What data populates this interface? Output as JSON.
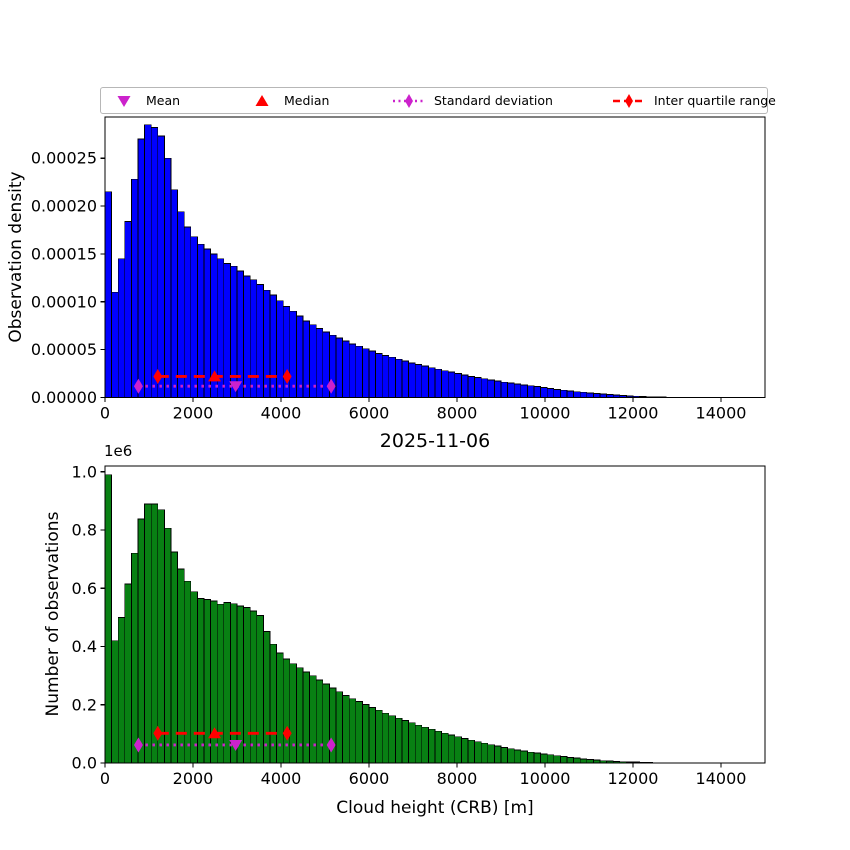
{
  "figure": {
    "title": "2025-11-06",
    "xlabel": "Cloud height (CRB) [m]",
    "background": "#ffffff"
  },
  "legend": {
    "items": [
      {
        "label": "Mean",
        "marker": "triangle-down",
        "color": "#CC22CC"
      },
      {
        "label": "Median",
        "marker": "triangle-up",
        "color": "#FF0000"
      },
      {
        "label": "Standard deviation",
        "marker": "dotted-line-diamond",
        "color": "#CC22CC"
      },
      {
        "label": "Inter quartile range",
        "marker": "dashed-line-diamond",
        "color": "#FF0000"
      }
    ]
  },
  "chart_data": [
    {
      "type": "bar",
      "name": "observation-density-histogram",
      "ylabel": "Observation density",
      "bar_color": "#0000FF",
      "bar_edge_color": "#000000",
      "x_start": 0,
      "bin_width_m": 150,
      "xlim": [
        0,
        15000
      ],
      "ylim": [
        0,
        0.000293
      ],
      "value_unit": 1e-06,
      "ymax_units": 293,
      "xticks": [
        0,
        2000,
        4000,
        6000,
        8000,
        10000,
        12000,
        14000
      ],
      "yticks": [
        {
          "v": 0,
          "label": "0.00000"
        },
        {
          "v": 50,
          "label": "0.00005"
        },
        {
          "v": 100,
          "label": "0.00010"
        },
        {
          "v": 150,
          "label": "0.00015"
        },
        {
          "v": 200,
          "label": "0.00020"
        },
        {
          "v": 250,
          "label": "0.00025"
        }
      ],
      "values": [
        215,
        110,
        145,
        184,
        228,
        270,
        285,
        282,
        273,
        250,
        217,
        194,
        178,
        168,
        160,
        155,
        150,
        145,
        140,
        137,
        132,
        127,
        123,
        118,
        112,
        107,
        101,
        95,
        90,
        85,
        80,
        76,
        72,
        68.5,
        65,
        62,
        59,
        56,
        53.5,
        51,
        48.5,
        46,
        44,
        42,
        40,
        38,
        36,
        34.5,
        33,
        31,
        29.5,
        28,
        26.5,
        25,
        23.5,
        22,
        20.8,
        19.6,
        18.4,
        17.2,
        16,
        15,
        14,
        13,
        12.2,
        11.5,
        10.4,
        9.4,
        8.5,
        7.6,
        6.8,
        6.1,
        5.4,
        4.7,
        4.1,
        3.5,
        3.0,
        2.5,
        2.0,
        1.6,
        1.3,
        1.0,
        0.8,
        0.6,
        0.4,
        0.3,
        0.2,
        0.15,
        0.1,
        0.07,
        0.05,
        0.03,
        0.02,
        0,
        0,
        0,
        0,
        0,
        0,
        0
      ],
      "stats": {
        "mean": 2970,
        "median": 2490,
        "q1": 1200,
        "q3": 4140,
        "std_low": 760,
        "std_high": 5140,
        "iqr_line_y": 22,
        "std_line_y": 11.8
      }
    },
    {
      "type": "bar",
      "name": "observation-count-histogram",
      "ylabel": "Number of observations",
      "y_offset_text": "1e6",
      "bar_color": "#088013",
      "bar_edge_color": "#000000",
      "x_start": 0,
      "bin_width_m": 150,
      "xlim": [
        0,
        15000
      ],
      "ylim": [
        0,
        1020000
      ],
      "value_unit": 1000000.0,
      "ymax_units": 1.02,
      "xticks": [
        0,
        2000,
        4000,
        6000,
        8000,
        10000,
        12000,
        14000
      ],
      "yticks": [
        {
          "v": 0,
          "label": "0.0"
        },
        {
          "v": 0.2,
          "label": "0.2"
        },
        {
          "v": 0.4,
          "label": "0.4"
        },
        {
          "v": 0.6,
          "label": "0.6"
        },
        {
          "v": 0.8,
          "label": "0.8"
        },
        {
          "v": 1.0,
          "label": "1.0"
        }
      ],
      "values": [
        0.99,
        0.42,
        0.5,
        0.615,
        0.72,
        0.838,
        0.889,
        0.889,
        0.87,
        0.806,
        0.725,
        0.666,
        0.624,
        0.588,
        0.565,
        0.562,
        0.556,
        0.545,
        0.551,
        0.547,
        0.539,
        0.534,
        0.522,
        0.507,
        0.452,
        0.408,
        0.378,
        0.357,
        0.341,
        0.327,
        0.313,
        0.3,
        0.285,
        0.271,
        0.258,
        0.245,
        0.232,
        0.221,
        0.211,
        0.201,
        0.191,
        0.181,
        0.171,
        0.162,
        0.154,
        0.146,
        0.138,
        0.13,
        0.123,
        0.116,
        0.109,
        0.102,
        0.096,
        0.09,
        0.084,
        0.078,
        0.073,
        0.068,
        0.063,
        0.058,
        0.053,
        0.049,
        0.045,
        0.041,
        0.037,
        0.034,
        0.031,
        0.028,
        0.025,
        0.022,
        0.019,
        0.017,
        0.014,
        0.012,
        0.01,
        0.008,
        0.007,
        0.005,
        0.004,
        0.003,
        0.003,
        0.002,
        0.002,
        0.001,
        0.001,
        0.001,
        0,
        0,
        0,
        0,
        0,
        0,
        0,
        0,
        0,
        0,
        0,
        0,
        0,
        0
      ],
      "stats": {
        "mean": 2970,
        "median": 2490,
        "q1": 1200,
        "q3": 4140,
        "std_low": 760,
        "std_high": 5140,
        "iqr_line_y": 0.102,
        "std_line_y": 0.062
      }
    }
  ]
}
